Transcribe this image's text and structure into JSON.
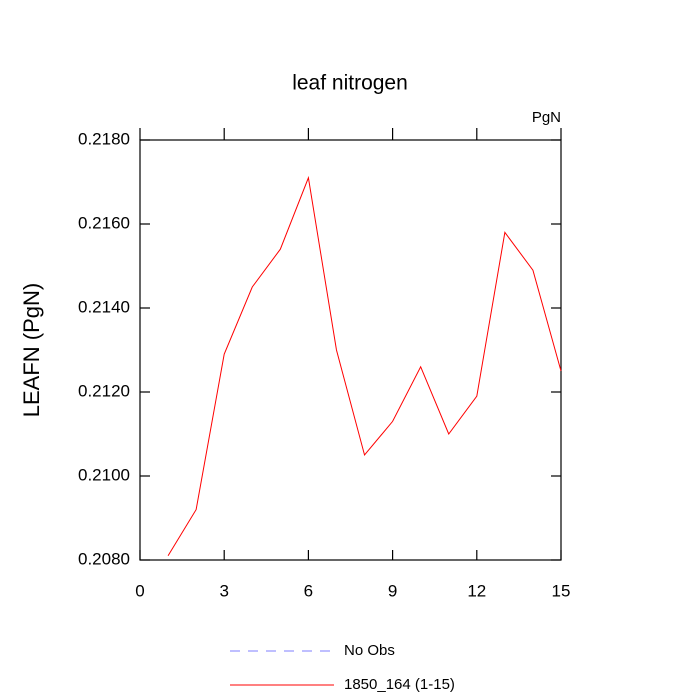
{
  "chart_data": {
    "type": "line",
    "title": "leaf nitrogen",
    "subtitle": "PgN",
    "y_label": "LEAFN  (PgN)",
    "x": [
      1,
      2,
      3,
      4,
      5,
      6,
      7,
      8,
      9,
      10,
      11,
      12,
      13,
      14,
      15
    ],
    "series": [
      {
        "name": "No Obs",
        "color": "#7f7fff",
        "dashed": true,
        "values": [
          null,
          null,
          null,
          null,
          null,
          null,
          null,
          null,
          null,
          null,
          null,
          null,
          null,
          null,
          null
        ]
      },
      {
        "name": "1850_164 (1-15)",
        "color": "#ff0000",
        "dashed": false,
        "values": [
          0.2081,
          0.2092,
          0.2129,
          0.2145,
          0.2154,
          0.2171,
          0.213,
          0.2105,
          0.2113,
          0.2126,
          0.211,
          0.2119,
          0.2158,
          0.2149,
          0.2125
        ]
      }
    ],
    "xlim": [
      0,
      15
    ],
    "xticks": [
      0,
      3,
      6,
      9,
      12,
      15
    ],
    "ylim": [
      0.208,
      0.218
    ],
    "yticks": [
      {
        "value": 0.208,
        "label": "0.2080"
      },
      {
        "value": 0.21,
        "label": "0.2100"
      },
      {
        "value": 0.212,
        "label": "0.2120"
      },
      {
        "value": 0.214,
        "label": "0.2140"
      },
      {
        "value": 0.216,
        "label": "0.2160"
      },
      {
        "value": 0.218,
        "label": "0.2180"
      }
    ],
    "grid": false,
    "legend": "bottom"
  }
}
